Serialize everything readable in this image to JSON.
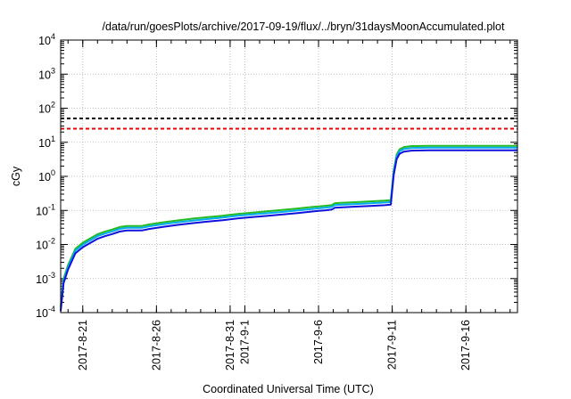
{
  "chart_data": {
    "type": "line",
    "title": "/data/run/goesPlots/archive/2017-09-19/flux/../bryn/31daysMoonAccumulated.plot",
    "xlabel": "Coordinated Universal Time (UTC)",
    "ylabel": "cGy",
    "y_scale": "log",
    "ylim": [
      0.0001,
      10000
    ],
    "xlim": [
      0,
      31
    ],
    "grid": true,
    "x_tick_labels": [
      {
        "x": 1.5,
        "lines": [
          "2017-8-21"
        ]
      },
      {
        "x": 6.5,
        "lines": [
          "2017-8-26"
        ]
      },
      {
        "x": 11.5,
        "lines": [
          "2017-8-31"
        ]
      },
      {
        "x": 12.5,
        "lines": [
          "2017-9-1"
        ]
      },
      {
        "x": 17.5,
        "lines": [
          "2017-9-6"
        ]
      },
      {
        "x": 22.5,
        "lines": [
          "2017-9-11"
        ]
      },
      {
        "x": 27.5,
        "lines": [
          "2017-9-16"
        ]
      }
    ],
    "y_ticks": [
      {
        "value": 0.0001,
        "base": "10",
        "exp": "-4"
      },
      {
        "value": 0.001,
        "base": "10",
        "exp": "-3"
      },
      {
        "value": 0.01,
        "base": "10",
        "exp": "-2"
      },
      {
        "value": 0.1,
        "base": "10",
        "exp": "-1"
      },
      {
        "value": 1,
        "base": "10",
        "exp": "0"
      },
      {
        "value": 10,
        "base": "10",
        "exp": "1"
      },
      {
        "value": 100,
        "base": "10",
        "exp": "2"
      },
      {
        "value": 1000,
        "base": "10",
        "exp": "3"
      },
      {
        "value": 10000,
        "base": "10",
        "exp": "4"
      }
    ],
    "thresholds": [
      {
        "value": 50,
        "color": "#000000"
      },
      {
        "value": 25,
        "color": "#ee0000"
      }
    ],
    "series": [
      {
        "color": "#22bb22",
        "scale": 1.25
      },
      {
        "color": "#00aaee",
        "scale": 1.1
      },
      {
        "color": "#1111dd",
        "scale": 0.92
      }
    ],
    "base_curve": [
      [
        0.0,
        0.00012
      ],
      [
        0.2,
        0.0008
      ],
      [
        0.5,
        0.002
      ],
      [
        1.0,
        0.006
      ],
      [
        1.5,
        0.009
      ],
      [
        2.0,
        0.012
      ],
      [
        2.5,
        0.016
      ],
      [
        3.0,
        0.019
      ],
      [
        3.5,
        0.022
      ],
      [
        4.0,
        0.026
      ],
      [
        4.5,
        0.028
      ],
      [
        5.0,
        0.028
      ],
      [
        5.5,
        0.028
      ],
      [
        6.0,
        0.031
      ],
      [
        7.0,
        0.036
      ],
      [
        8.0,
        0.041
      ],
      [
        9.0,
        0.046
      ],
      [
        10.0,
        0.051
      ],
      [
        11.0,
        0.056
      ],
      [
        12.0,
        0.063
      ],
      [
        13.0,
        0.069
      ],
      [
        14.0,
        0.075
      ],
      [
        15.0,
        0.082
      ],
      [
        16.0,
        0.09
      ],
      [
        17.0,
        0.1
      ],
      [
        17.5,
        0.105
      ],
      [
        18.0,
        0.11
      ],
      [
        18.4,
        0.115
      ],
      [
        18.6,
        0.13
      ],
      [
        19.0,
        0.133
      ],
      [
        20.0,
        0.14
      ],
      [
        21.0,
        0.147
      ],
      [
        22.0,
        0.155
      ],
      [
        22.4,
        0.16
      ],
      [
        22.6,
        1.2
      ],
      [
        22.8,
        3.5
      ],
      [
        23.0,
        5.0
      ],
      [
        23.3,
        5.8
      ],
      [
        23.8,
        6.2
      ],
      [
        25.0,
        6.3
      ],
      [
        28.0,
        6.3
      ],
      [
        31.0,
        6.3
      ]
    ]
  }
}
